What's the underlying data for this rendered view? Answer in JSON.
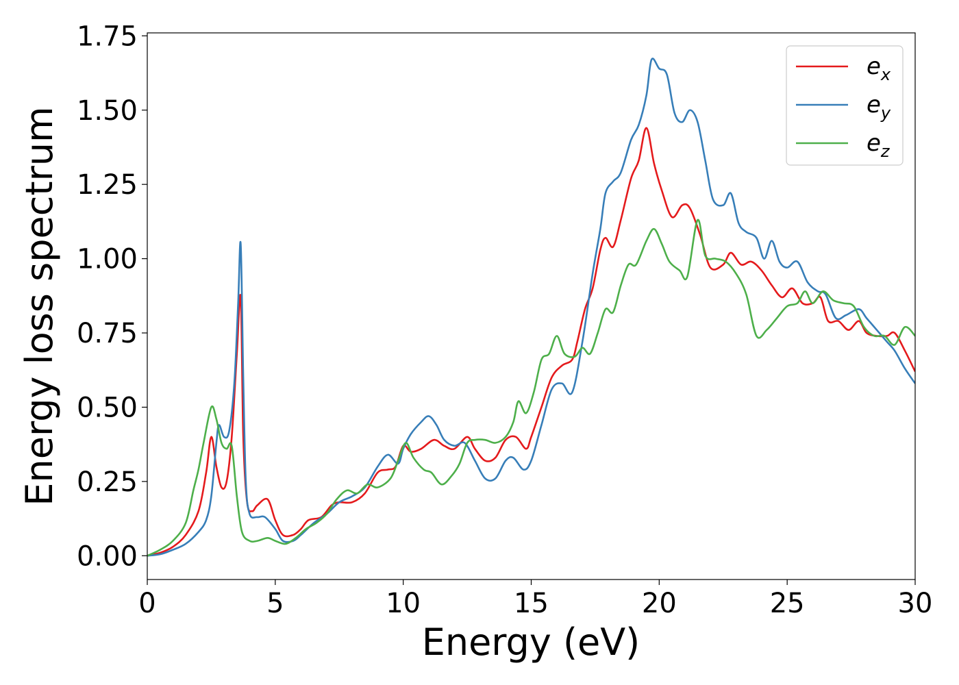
{
  "chart_data": {
    "type": "line",
    "xlabel": "Energy (eV)",
    "ylabel": "Energy loss spectrum",
    "xlim": [
      0,
      30
    ],
    "ylim": [
      -0.08,
      1.76
    ],
    "xticks": [
      0,
      5,
      10,
      15,
      20,
      25,
      30
    ],
    "yticks": [
      0.0,
      0.25,
      0.5,
      0.75,
      1.0,
      1.25,
      1.5,
      1.75
    ],
    "xtick_labels": [
      "0",
      "5",
      "10",
      "15",
      "20",
      "25",
      "30"
    ],
    "ytick_labels": [
      "0.00",
      "0.25",
      "0.50",
      "0.75",
      "1.00",
      "1.25",
      "1.50",
      "1.75"
    ],
    "grid": false,
    "legend_position": "top-right",
    "series": [
      {
        "name": "e_x",
        "label_base": "e",
        "label_sub": "x",
        "color": "#e41a1c",
        "points": [
          [
            0,
            0
          ],
          [
            0.5,
            0.01
          ],
          [
            1.0,
            0.03
          ],
          [
            1.5,
            0.07
          ],
          [
            2.0,
            0.15
          ],
          [
            2.3,
            0.28
          ],
          [
            2.5,
            0.4
          ],
          [
            2.7,
            0.3
          ],
          [
            2.9,
            0.23
          ],
          [
            3.1,
            0.25
          ],
          [
            3.3,
            0.4
          ],
          [
            3.5,
            0.68
          ],
          [
            3.65,
            0.87
          ],
          [
            3.75,
            0.4
          ],
          [
            3.9,
            0.18
          ],
          [
            4.1,
            0.15
          ],
          [
            4.3,
            0.17
          ],
          [
            4.7,
            0.19
          ],
          [
            5.0,
            0.12
          ],
          [
            5.3,
            0.07
          ],
          [
            5.7,
            0.07
          ],
          [
            6.0,
            0.09
          ],
          [
            6.3,
            0.12
          ],
          [
            6.8,
            0.13
          ],
          [
            7.2,
            0.17
          ],
          [
            7.5,
            0.18
          ],
          [
            8.0,
            0.18
          ],
          [
            8.5,
            0.21
          ],
          [
            9.0,
            0.28
          ],
          [
            9.4,
            0.29
          ],
          [
            9.7,
            0.3
          ],
          [
            10.0,
            0.37
          ],
          [
            10.3,
            0.35
          ],
          [
            10.7,
            0.36
          ],
          [
            11.2,
            0.39
          ],
          [
            11.6,
            0.37
          ],
          [
            12.0,
            0.36
          ],
          [
            12.5,
            0.4
          ],
          [
            12.8,
            0.36
          ],
          [
            13.2,
            0.32
          ],
          [
            13.6,
            0.33
          ],
          [
            14.0,
            0.39
          ],
          [
            14.4,
            0.4
          ],
          [
            14.8,
            0.36
          ],
          [
            15.0,
            0.4
          ],
          [
            15.4,
            0.5
          ],
          [
            15.8,
            0.6
          ],
          [
            16.2,
            0.64
          ],
          [
            16.6,
            0.66
          ],
          [
            16.8,
            0.72
          ],
          [
            17.1,
            0.83
          ],
          [
            17.4,
            0.9
          ],
          [
            17.7,
            1.03
          ],
          [
            17.9,
            1.07
          ],
          [
            18.2,
            1.04
          ],
          [
            18.5,
            1.13
          ],
          [
            18.9,
            1.27
          ],
          [
            19.2,
            1.33
          ],
          [
            19.5,
            1.44
          ],
          [
            19.8,
            1.32
          ],
          [
            20.1,
            1.23
          ],
          [
            20.5,
            1.14
          ],
          [
            20.9,
            1.18
          ],
          [
            21.2,
            1.17
          ],
          [
            21.6,
            1.08
          ],
          [
            22.0,
            0.97
          ],
          [
            22.5,
            0.98
          ],
          [
            22.8,
            1.02
          ],
          [
            23.2,
            0.98
          ],
          [
            23.6,
            0.99
          ],
          [
            24.0,
            0.96
          ],
          [
            24.4,
            0.91
          ],
          [
            24.8,
            0.87
          ],
          [
            25.2,
            0.9
          ],
          [
            25.6,
            0.85
          ],
          [
            26.0,
            0.85
          ],
          [
            26.3,
            0.87
          ],
          [
            26.6,
            0.79
          ],
          [
            27.0,
            0.79
          ],
          [
            27.4,
            0.76
          ],
          [
            27.8,
            0.79
          ],
          [
            28.1,
            0.75
          ],
          [
            28.5,
            0.74
          ],
          [
            28.9,
            0.74
          ],
          [
            29.2,
            0.75
          ],
          [
            29.6,
            0.69
          ],
          [
            30.0,
            0.62
          ]
        ]
      },
      {
        "name": "e_y",
        "label_base": "e",
        "label_sub": "y",
        "color": "#377eb8",
        "points": [
          [
            0,
            0
          ],
          [
            0.5,
            0.005
          ],
          [
            1.0,
            0.02
          ],
          [
            1.5,
            0.04
          ],
          [
            2.0,
            0.08
          ],
          [
            2.3,
            0.12
          ],
          [
            2.5,
            0.2
          ],
          [
            2.7,
            0.38
          ],
          [
            2.8,
            0.44
          ],
          [
            3.0,
            0.4
          ],
          [
            3.2,
            0.42
          ],
          [
            3.4,
            0.58
          ],
          [
            3.55,
            0.85
          ],
          [
            3.65,
            1.05
          ],
          [
            3.75,
            0.6
          ],
          [
            3.85,
            0.25
          ],
          [
            4.0,
            0.14
          ],
          [
            4.3,
            0.13
          ],
          [
            4.6,
            0.13
          ],
          [
            5.0,
            0.09
          ],
          [
            5.3,
            0.05
          ],
          [
            5.7,
            0.05
          ],
          [
            6.0,
            0.07
          ],
          [
            6.5,
            0.11
          ],
          [
            7.0,
            0.14
          ],
          [
            7.5,
            0.18
          ],
          [
            8.0,
            0.2
          ],
          [
            8.5,
            0.23
          ],
          [
            9.0,
            0.3
          ],
          [
            9.4,
            0.34
          ],
          [
            9.8,
            0.31
          ],
          [
            10.0,
            0.36
          ],
          [
            10.3,
            0.41
          ],
          [
            10.7,
            0.45
          ],
          [
            11.0,
            0.47
          ],
          [
            11.3,
            0.44
          ],
          [
            11.6,
            0.39
          ],
          [
            12.0,
            0.37
          ],
          [
            12.4,
            0.38
          ],
          [
            12.8,
            0.32
          ],
          [
            13.2,
            0.26
          ],
          [
            13.6,
            0.26
          ],
          [
            14.0,
            0.32
          ],
          [
            14.3,
            0.33
          ],
          [
            14.7,
            0.29
          ],
          [
            15.0,
            0.32
          ],
          [
            15.4,
            0.44
          ],
          [
            15.8,
            0.56
          ],
          [
            16.2,
            0.58
          ],
          [
            16.6,
            0.55
          ],
          [
            17.0,
            0.72
          ],
          [
            17.4,
            0.95
          ],
          [
            17.7,
            1.1
          ],
          [
            17.9,
            1.22
          ],
          [
            18.2,
            1.26
          ],
          [
            18.5,
            1.29
          ],
          [
            18.9,
            1.4
          ],
          [
            19.2,
            1.45
          ],
          [
            19.5,
            1.55
          ],
          [
            19.7,
            1.67
          ],
          [
            20.0,
            1.64
          ],
          [
            20.3,
            1.62
          ],
          [
            20.6,
            1.49
          ],
          [
            20.9,
            1.46
          ],
          [
            21.2,
            1.5
          ],
          [
            21.5,
            1.46
          ],
          [
            21.8,
            1.33
          ],
          [
            22.1,
            1.2
          ],
          [
            22.5,
            1.18
          ],
          [
            22.8,
            1.22
          ],
          [
            23.1,
            1.12
          ],
          [
            23.4,
            1.09
          ],
          [
            23.8,
            1.07
          ],
          [
            24.1,
            1.0
          ],
          [
            24.4,
            1.06
          ],
          [
            24.7,
            0.99
          ],
          [
            25.0,
            0.97
          ],
          [
            25.4,
            0.99
          ],
          [
            25.8,
            0.92
          ],
          [
            26.2,
            0.89
          ],
          [
            26.5,
            0.88
          ],
          [
            26.9,
            0.8
          ],
          [
            27.3,
            0.81
          ],
          [
            27.8,
            0.83
          ],
          [
            28.1,
            0.8
          ],
          [
            28.5,
            0.76
          ],
          [
            28.9,
            0.72
          ],
          [
            29.2,
            0.69
          ],
          [
            29.6,
            0.63
          ],
          [
            30.0,
            0.58
          ]
        ]
      },
      {
        "name": "e_z",
        "label_base": "e",
        "label_sub": "z",
        "color": "#4daf4a",
        "points": [
          [
            0,
            0
          ],
          [
            0.5,
            0.02
          ],
          [
            1.0,
            0.05
          ],
          [
            1.5,
            0.11
          ],
          [
            1.8,
            0.22
          ],
          [
            2.0,
            0.29
          ],
          [
            2.2,
            0.38
          ],
          [
            2.5,
            0.5
          ],
          [
            2.7,
            0.46
          ],
          [
            2.9,
            0.38
          ],
          [
            3.1,
            0.36
          ],
          [
            3.3,
            0.37
          ],
          [
            3.5,
            0.2
          ],
          [
            3.7,
            0.08
          ],
          [
            4.0,
            0.05
          ],
          [
            4.3,
            0.05
          ],
          [
            4.7,
            0.06
          ],
          [
            5.0,
            0.05
          ],
          [
            5.4,
            0.04
          ],
          [
            5.8,
            0.06
          ],
          [
            6.2,
            0.09
          ],
          [
            6.6,
            0.11
          ],
          [
            7.0,
            0.14
          ],
          [
            7.4,
            0.19
          ],
          [
            7.8,
            0.22
          ],
          [
            8.2,
            0.21
          ],
          [
            8.6,
            0.24
          ],
          [
            9.0,
            0.23
          ],
          [
            9.5,
            0.26
          ],
          [
            9.8,
            0.32
          ],
          [
            10.1,
            0.38
          ],
          [
            10.4,
            0.33
          ],
          [
            10.8,
            0.29
          ],
          [
            11.1,
            0.28
          ],
          [
            11.5,
            0.24
          ],
          [
            11.9,
            0.27
          ],
          [
            12.2,
            0.31
          ],
          [
            12.5,
            0.38
          ],
          [
            12.8,
            0.39
          ],
          [
            13.2,
            0.39
          ],
          [
            13.6,
            0.38
          ],
          [
            14.0,
            0.4
          ],
          [
            14.3,
            0.45
          ],
          [
            14.5,
            0.52
          ],
          [
            14.8,
            0.48
          ],
          [
            15.1,
            0.55
          ],
          [
            15.4,
            0.66
          ],
          [
            15.7,
            0.68
          ],
          [
            16.0,
            0.74
          ],
          [
            16.3,
            0.68
          ],
          [
            16.7,
            0.67
          ],
          [
            17.0,
            0.7
          ],
          [
            17.3,
            0.68
          ],
          [
            17.6,
            0.75
          ],
          [
            17.9,
            0.83
          ],
          [
            18.2,
            0.82
          ],
          [
            18.5,
            0.91
          ],
          [
            18.8,
            0.98
          ],
          [
            19.1,
            0.98
          ],
          [
            19.5,
            1.06
          ],
          [
            19.8,
            1.1
          ],
          [
            20.1,
            1.05
          ],
          [
            20.4,
            0.99
          ],
          [
            20.8,
            0.96
          ],
          [
            21.1,
            0.94
          ],
          [
            21.5,
            1.13
          ],
          [
            21.8,
            1.01
          ],
          [
            22.2,
            1.0
          ],
          [
            22.6,
            0.99
          ],
          [
            23.0,
            0.95
          ],
          [
            23.4,
            0.88
          ],
          [
            23.8,
            0.74
          ],
          [
            24.2,
            0.76
          ],
          [
            24.6,
            0.8
          ],
          [
            25.0,
            0.84
          ],
          [
            25.4,
            0.85
          ],
          [
            25.7,
            0.89
          ],
          [
            26.0,
            0.85
          ],
          [
            26.4,
            0.89
          ],
          [
            26.8,
            0.86
          ],
          [
            27.2,
            0.85
          ],
          [
            27.6,
            0.84
          ],
          [
            28.0,
            0.77
          ],
          [
            28.4,
            0.74
          ],
          [
            28.8,
            0.74
          ],
          [
            29.2,
            0.71
          ],
          [
            29.6,
            0.77
          ],
          [
            30.0,
            0.74
          ]
        ]
      }
    ]
  }
}
